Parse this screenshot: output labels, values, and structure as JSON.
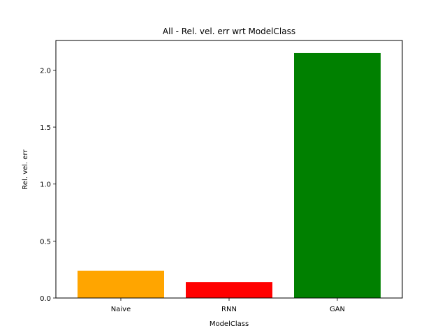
{
  "chart_data": {
    "type": "bar",
    "title": "All - Rel. vel. err wrt ModelClass",
    "xlabel": "ModelClass",
    "ylabel": "Rel. vel. err",
    "categories": [
      "Naive",
      "RNN",
      "GAN"
    ],
    "values": [
      0.24,
      0.14,
      2.15
    ],
    "colors": [
      "#FFA500",
      "#FF0000",
      "#008000"
    ],
    "ylim": [
      0,
      2.26
    ],
    "yticks": [
      0.0,
      0.5,
      1.0,
      1.5,
      2.0
    ],
    "ytick_labels": [
      "0.0",
      "0.5",
      "1.0",
      "1.5",
      "2.0"
    ],
    "grid": false,
    "legend": "none"
  }
}
